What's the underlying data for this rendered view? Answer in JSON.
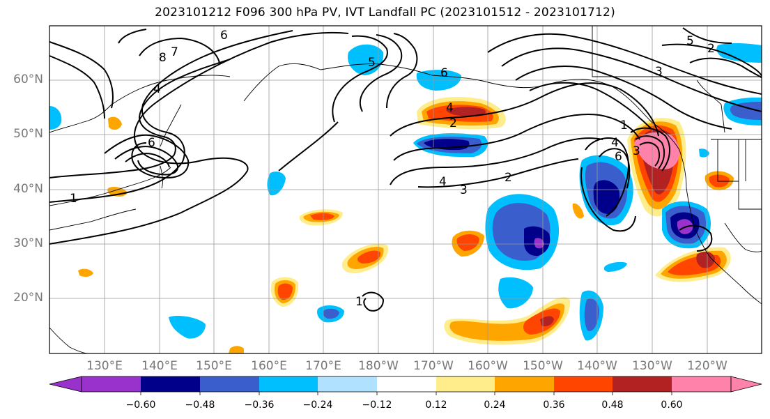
{
  "title": "2023101212 F096 300 hPa PV, IVT Landfall PC (2023101512 - 2023101712)",
  "map": {
    "lat_labels": [
      {
        "text": "60°N",
        "lat": 60
      },
      {
        "text": "50°N",
        "lat": 50
      },
      {
        "text": "40°N",
        "lat": 40
      },
      {
        "text": "30°N",
        "lat": 30
      },
      {
        "text": "20°N",
        "lat": 20
      }
    ],
    "lon_labels": [
      {
        "text": "130°E",
        "lon": 130
      },
      {
        "text": "140°E",
        "lon": 140
      },
      {
        "text": "150°E",
        "lon": 150
      },
      {
        "text": "160°E",
        "lon": 160
      },
      {
        "text": "170°E",
        "lon": 170
      },
      {
        "text": "180°W",
        "lon": 180
      },
      {
        "text": "170°W",
        "lon": 190
      },
      {
        "text": "160°W",
        "lon": 200
      },
      {
        "text": "150°W",
        "lon": 210
      },
      {
        "text": "140°W",
        "lon": 220
      },
      {
        "text": "130°W",
        "lon": 230
      },
      {
        "text": "120°W",
        "lon": 240
      }
    ],
    "extent": {
      "lon_min": 120,
      "lon_max": 250,
      "lat_min": 10,
      "lat_max": 70
    },
    "pv_contour_labels": [
      "6",
      "8",
      "7",
      "4",
      "6",
      "5",
      "1",
      "2",
      "3",
      "4",
      "2",
      "3",
      "1",
      "4",
      "6",
      "6",
      "5",
      "4",
      "2",
      "1",
      "3"
    ]
  },
  "colorbar": {
    "colors": [
      "#9932CC",
      "#00008B",
      "#3A5FCD",
      "#00BFFF",
      "#B0E2FF",
      "#FFFFFF",
      "#FFEC8B",
      "#FFA500",
      "#FF4500",
      "#B22222",
      "#FF82AB"
    ],
    "ticks": [
      "−0.60",
      "−0.48",
      "−0.36",
      "−0.24",
      "−0.12",
      "0.12",
      "0.24",
      "0.36",
      "0.48",
      "0.60"
    ]
  }
}
